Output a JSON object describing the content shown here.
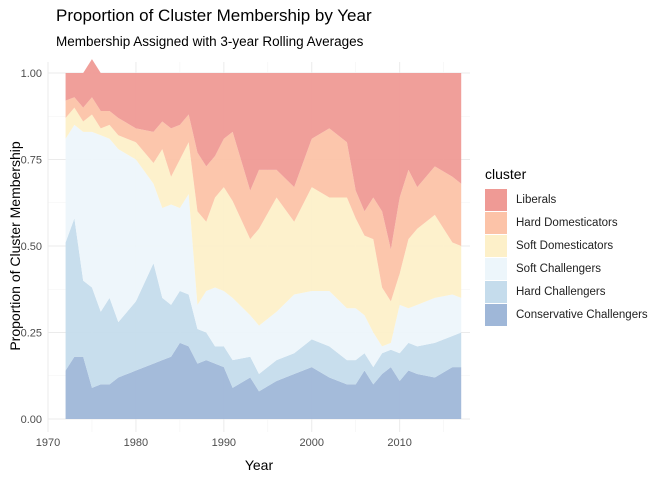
{
  "chart_data": {
    "type": "area",
    "stacked": true,
    "title": "Proportion of Cluster Membership by Year",
    "subtitle": "Membership Assigned with 3-year Rolling Averages",
    "xlabel": "Year",
    "ylabel": "Proportion of Cluster Membership",
    "xlim": [
      1970,
      2018
    ],
    "ylim": [
      0,
      1
    ],
    "x_ticks": [
      1970,
      1980,
      1990,
      2000,
      2010
    ],
    "x_tick_labels": [
      "1970",
      "1980",
      "1990",
      "2000",
      "2010"
    ],
    "y_ticks": [
      0,
      0.25,
      0.5,
      0.75,
      1
    ],
    "y_tick_labels": [
      "0.00",
      "0.25",
      "0.50",
      "0.75",
      "1.00"
    ],
    "legend_title": "cluster",
    "legend_position": "right",
    "x": [
      1972,
      1973,
      1974,
      1975,
      1976,
      1977,
      1978,
      1980,
      1982,
      1983,
      1984,
      1985,
      1986,
      1987,
      1988,
      1989,
      1990,
      1991,
      1993,
      1994,
      1996,
      1998,
      2000,
      2002,
      2004,
      2005,
      2006,
      2007,
      2008,
      2009,
      2010,
      2011,
      2012,
      2014,
      2016,
      2017
    ],
    "series": [
      {
        "name": "Conservative Challengers",
        "color": "#9fb7d8",
        "values": [
          0.14,
          0.18,
          0.18,
          0.09,
          0.1,
          0.1,
          0.12,
          0.14,
          0.16,
          0.17,
          0.18,
          0.22,
          0.21,
          0.16,
          0.17,
          0.16,
          0.15,
          0.09,
          0.12,
          0.08,
          0.11,
          0.13,
          0.15,
          0.12,
          0.1,
          0.1,
          0.14,
          0.1,
          0.13,
          0.15,
          0.11,
          0.14,
          0.13,
          0.12,
          0.15,
          0.15
        ]
      },
      {
        "name": "Hard Challengers",
        "color": "#c5dcec",
        "values": [
          0.37,
          0.4,
          0.22,
          0.29,
          0.21,
          0.25,
          0.16,
          0.2,
          0.29,
          0.18,
          0.15,
          0.15,
          0.15,
          0.1,
          0.08,
          0.05,
          0.06,
          0.08,
          0.06,
          0.05,
          0.06,
          0.06,
          0.08,
          0.09,
          0.07,
          0.07,
          0.05,
          0.05,
          0.06,
          0.05,
          0.08,
          0.08,
          0.08,
          0.1,
          0.09,
          0.1
        ]
      },
      {
        "name": "Soft Challengers",
        "color": "#edf6fb",
        "values": [
          0.3,
          0.27,
          0.43,
          0.45,
          0.51,
          0.46,
          0.5,
          0.41,
          0.23,
          0.26,
          0.29,
          0.24,
          0.29,
          0.07,
          0.12,
          0.17,
          0.16,
          0.18,
          0.12,
          0.14,
          0.14,
          0.17,
          0.14,
          0.16,
          0.15,
          0.15,
          0.11,
          0.1,
          0.02,
          0.02,
          0.14,
          0.1,
          0.12,
          0.13,
          0.12,
          0.1
        ]
      },
      {
        "name": "Soft Domesticators",
        "color": "#fdf0c9",
        "values": [
          0.06,
          0.05,
          0.03,
          0.05,
          0.02,
          0.04,
          0.04,
          0.05,
          0.06,
          0.17,
          0.08,
          0.14,
          0.15,
          0.27,
          0.2,
          0.26,
          0.3,
          0.28,
          0.22,
          0.28,
          0.33,
          0.21,
          0.3,
          0.27,
          0.32,
          0.26,
          0.23,
          0.27,
          0.17,
          0.12,
          0.09,
          0.2,
          0.22,
          0.24,
          0.15,
          0.15
        ]
      },
      {
        "name": "Hard Domesticators",
        "color": "#fcc3a8",
        "values": [
          0.05,
          0.03,
          0.04,
          0.05,
          0.05,
          0.04,
          0.05,
          0.04,
          0.09,
          0.08,
          0.14,
          0.1,
          0.08,
          0.17,
          0.16,
          0.12,
          0.14,
          0.2,
          0.14,
          0.17,
          0.08,
          0.1,
          0.14,
          0.2,
          0.16,
          0.08,
          0.07,
          0.12,
          0.22,
          0.15,
          0.22,
          0.2,
          0.12,
          0.14,
          0.19,
          0.18
        ]
      },
      {
        "name": "Liberals",
        "color": "#ef9a95",
        "values": [
          0.08,
          0.07,
          0.1,
          0.11,
          0.11,
          0.11,
          0.13,
          0.16,
          0.17,
          0.14,
          0.16,
          0.15,
          0.12,
          0.23,
          0.27,
          0.24,
          0.19,
          0.17,
          0.34,
          0.28,
          0.28,
          0.33,
          0.19,
          0.16,
          0.2,
          0.34,
          0.4,
          0.36,
          0.4,
          0.51,
          0.36,
          0.28,
          0.33,
          0.27,
          0.3,
          0.32
        ]
      }
    ]
  }
}
